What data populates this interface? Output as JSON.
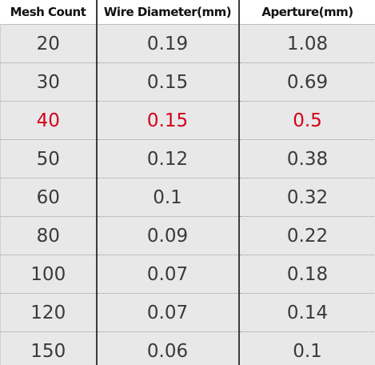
{
  "table": {
    "header": [
      "Mesh Count",
      "Wire Diameter(mm)",
      "Aperture(mm)"
    ],
    "rows": [
      [
        "20",
        "0.19",
        "1.08"
      ],
      [
        "30",
        "0.15",
        "0.69"
      ],
      [
        "40",
        "0.15",
        "0.5"
      ],
      [
        "50",
        "0.12",
        "0.38"
      ],
      [
        "60",
        "0.1",
        "0.32"
      ],
      [
        "80",
        "0.09",
        "0.22"
      ],
      [
        "100",
        "0.07",
        "0.18"
      ],
      [
        "120",
        "0.07",
        "0.14"
      ],
      [
        "150",
        "0.06",
        "0.1"
      ]
    ],
    "highlight_row": 2,
    "highlight_color": "#d0021b"
  }
}
